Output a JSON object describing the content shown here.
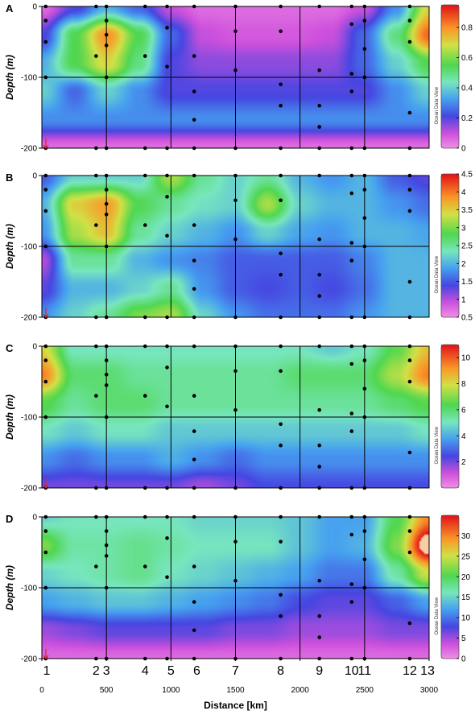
{
  "chart_data": [
    {
      "type": "heatmap",
      "panel": "A",
      "ylabel": "Depth (m)",
      "ylim": [
        -200,
        0
      ],
      "y_ticks": [
        "0",
        "-100",
        "-200"
      ],
      "xlim": [
        0,
        3000
      ],
      "colorbar": {
        "min": 0,
        "max": 0.95,
        "ticks": [
          "0.8",
          "0.6",
          "0.4",
          "0.2",
          "0"
        ],
        "tick_values": [
          0.8,
          0.6,
          0.4,
          0.2,
          0
        ],
        "caption": "Ocean Data View"
      },
      "grid": [
        [
          0.05,
          0.2,
          0.35,
          0.25,
          0.1,
          0.05,
          0.05,
          0.05,
          0.05,
          0.05,
          0.1,
          0.3,
          0.7
        ],
        [
          0.2,
          0.55,
          0.8,
          0.55,
          0.25,
          0.1,
          0.08,
          0.08,
          0.08,
          0.1,
          0.25,
          0.5,
          0.85
        ],
        [
          0.35,
          0.55,
          0.7,
          0.5,
          0.2,
          0.15,
          0.15,
          0.15,
          0.15,
          0.15,
          0.25,
          0.4,
          0.55
        ],
        [
          0.4,
          0.25,
          0.4,
          0.3,
          0.2,
          0.2,
          0.2,
          0.2,
          0.2,
          0.2,
          0.2,
          0.3,
          0.4
        ],
        [
          0.3,
          0.3,
          0.3,
          0.3,
          0.3,
          0.3,
          0.3,
          0.3,
          0.3,
          0.3,
          0.3,
          0.3,
          0.3
        ],
        [
          0.05,
          0.05,
          0.05,
          0.05,
          0.05,
          0.05,
          0.05,
          0.05,
          0.05,
          0.05,
          0.05,
          0.05,
          0.05
        ]
      ]
    },
    {
      "type": "heatmap",
      "panel": "B",
      "ylabel": "Depth (m)",
      "ylim": [
        -200,
        0
      ],
      "y_ticks": [
        "0",
        "-100",
        "-200"
      ],
      "xlim": [
        0,
        3000
      ],
      "colorbar": {
        "min": 0.5,
        "max": 4.5,
        "ticks": [
          "4.5",
          "4",
          "3.5",
          "3",
          "2.5",
          "2",
          "1.5",
          "1",
          "0.5"
        ],
        "tick_values": [
          4.5,
          4,
          3.5,
          3,
          2.5,
          2,
          1.5,
          1,
          0.5
        ],
        "caption": "Ocean Data View"
      },
      "grid": [
        [
          1.5,
          2.2,
          2.2,
          2.2,
          3.2,
          2.5,
          2.2,
          2.5,
          2.0,
          1.8,
          2.0,
          1.5,
          1.3
        ],
        [
          2.0,
          3.5,
          3.8,
          2.8,
          2.5,
          2.3,
          2.2,
          3.2,
          2.2,
          2.0,
          2.0,
          1.8,
          1.6
        ],
        [
          1.8,
          3.2,
          3.6,
          2.5,
          2.2,
          2.0,
          1.8,
          2.2,
          1.9,
          1.8,
          2.0,
          2.0,
          1.9
        ],
        [
          1.0,
          2.5,
          2.5,
          2.0,
          1.8,
          1.7,
          1.5,
          1.5,
          1.5,
          1.5,
          1.7,
          2.0,
          2.0
        ],
        [
          1.3,
          2.0,
          2.0,
          2.2,
          2.5,
          1.8,
          1.5,
          1.4,
          1.5,
          1.4,
          1.6,
          2.0,
          2.0
        ],
        [
          1.8,
          2.2,
          2.5,
          3.0,
          3.2,
          2.2,
          1.8,
          1.6,
          1.6,
          1.6,
          1.8,
          2.0,
          2.0
        ]
      ]
    },
    {
      "type": "heatmap",
      "panel": "C",
      "ylabel": "Depth (m)",
      "ylim": [
        -200,
        0
      ],
      "y_ticks": [
        "0",
        "-100",
        "-200"
      ],
      "xlim": [
        0,
        3000
      ],
      "colorbar": {
        "min": 0,
        "max": 11,
        "ticks": [
          "10",
          "8",
          "6",
          "4",
          "2"
        ],
        "tick_values": [
          10,
          8,
          6,
          4,
          2
        ],
        "caption": "Ocean Data View"
      },
      "grid": [
        [
          8.0,
          5.0,
          5.0,
          5.0,
          5.0,
          5.0,
          5.0,
          5.0,
          5.0,
          4.5,
          5.0,
          6.5,
          8.5
        ],
        [
          9.5,
          6.0,
          6.0,
          5.5,
          5.5,
          5.5,
          5.5,
          5.5,
          6.0,
          6.0,
          6.0,
          7.5,
          9.5
        ],
        [
          6.5,
          5.5,
          6.0,
          6.0,
          5.5,
          5.5,
          5.5,
          5.5,
          5.5,
          5.5,
          5.5,
          6.0,
          6.5
        ],
        [
          5.0,
          4.5,
          5.0,
          5.0,
          4.5,
          4.5,
          4.5,
          4.5,
          4.5,
          4.5,
          4.5,
          4.5,
          5.0
        ],
        [
          3.5,
          3.0,
          3.5,
          3.5,
          4.0,
          3.5,
          3.0,
          3.5,
          3.5,
          3.5,
          3.5,
          3.5,
          3.5
        ],
        [
          2.0,
          2.0,
          2.0,
          2.0,
          2.0,
          1.5,
          2.0,
          2.5,
          2.5,
          2.5,
          2.5,
          2.5,
          2.5
        ]
      ]
    },
    {
      "type": "heatmap",
      "panel": "D",
      "ylabel": "Depth (m)",
      "ylim": [
        -200,
        0
      ],
      "y_ticks": [
        "0",
        "-100",
        "-200"
      ],
      "xlim": [
        0,
        3000
      ],
      "xlabel": "Distance [km]",
      "x_ticks": [
        "0",
        "500",
        "1000",
        "1500",
        "2000",
        "2500",
        "3000"
      ],
      "x_tick_values": [
        0,
        500,
        1000,
        1500,
        2000,
        2500,
        3000
      ],
      "colorbar": {
        "min": 0,
        "max": 35,
        "ticks": [
          "30",
          "25",
          "20",
          "15",
          "10",
          "5",
          "0"
        ],
        "tick_values": [
          30,
          25,
          20,
          15,
          10,
          5,
          0
        ],
        "caption": "Ocean Data View"
      },
      "grid": [
        [
          15,
          16,
          16,
          16,
          16,
          15,
          15,
          15,
          14,
          12,
          12,
          20,
          30
        ],
        [
          22,
          17,
          17,
          18,
          17,
          16,
          16,
          16,
          14,
          12,
          13,
          22,
          38
        ],
        [
          15,
          16,
          17,
          18,
          16,
          15,
          14,
          13,
          12,
          10,
          10,
          17,
          25
        ],
        [
          12,
          13,
          14,
          14,
          13,
          12,
          11,
          10,
          8,
          7,
          7,
          9,
          12
        ],
        [
          5,
          6,
          7,
          7,
          7,
          7,
          6,
          6,
          5,
          5,
          5,
          6,
          6
        ],
        [
          2,
          2,
          2,
          2,
          2,
          2,
          2,
          2,
          2,
          2,
          2,
          2,
          2
        ]
      ]
    }
  ],
  "stations": {
    "labels": [
      "1",
      "2",
      "3",
      "4",
      "5",
      "6",
      "7",
      "8",
      "9",
      "10",
      "11",
      "12",
      "13"
    ],
    "distance_km": [
      0,
      420,
      500,
      800,
      1000,
      1200,
      1500,
      1850,
      2150,
      2400,
      2500,
      2850,
      3000
    ],
    "bounds_km": [
      500,
      1000,
      1500,
      2000,
      2500
    ]
  },
  "samples": [
    {
      "x": 30,
      "d": [
        0,
        20,
        50,
        100,
        200
      ]
    },
    {
      "x": 420,
      "d": [
        0,
        70,
        200
      ]
    },
    {
      "x": 500,
      "d": [
        0,
        20,
        40,
        55,
        100,
        200
      ]
    },
    {
      "x": 800,
      "d": [
        0,
        70,
        200
      ]
    },
    {
      "x": 970,
      "d": [
        0,
        30,
        85,
        200
      ]
    },
    {
      "x": 1180,
      "d": [
        0,
        70,
        120,
        160,
        200
      ]
    },
    {
      "x": 1500,
      "d": [
        0,
        35,
        90,
        200
      ]
    },
    {
      "x": 1850,
      "d": [
        0,
        35,
        110,
        140,
        200
      ]
    },
    {
      "x": 2150,
      "d": [
        0,
        90,
        140,
        170,
        200
      ]
    },
    {
      "x": 2400,
      "d": [
        0,
        25,
        95,
        120,
        200
      ]
    },
    {
      "x": 2500,
      "d": [
        0,
        20,
        60,
        100,
        200
      ]
    },
    {
      "x": 2850,
      "d": [
        0,
        20,
        50,
        150,
        200
      ]
    }
  ]
}
